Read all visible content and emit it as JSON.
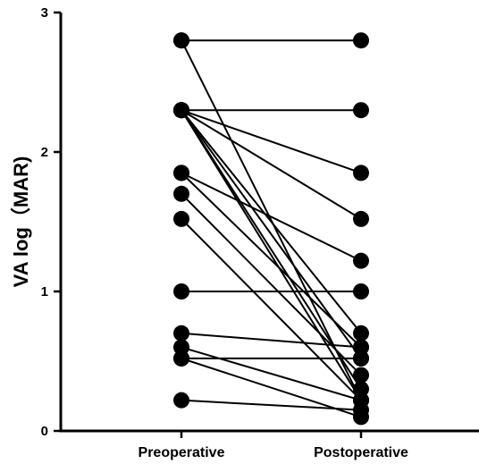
{
  "chart_data": {
    "type": "scatter",
    "subtype": "paired-before-after",
    "title": "",
    "xlabel": "",
    "ylabel": "VA log（MAR)",
    "categories": [
      "Preoperative",
      "Postoperative"
    ],
    "ylim": [
      0,
      3
    ],
    "yticks": [
      0,
      1,
      2,
      3
    ],
    "grid": false,
    "legend": "none",
    "colors": {
      "marker": "#000000",
      "line": "#000000"
    },
    "pairs": [
      [
        2.8,
        2.8
      ],
      [
        2.8,
        0.22
      ],
      [
        2.3,
        2.3
      ],
      [
        2.3,
        1.85
      ],
      [
        2.3,
        1.52
      ],
      [
        2.3,
        0.7
      ],
      [
        2.3,
        0.52
      ],
      [
        2.3,
        0.3
      ],
      [
        2.3,
        0.22
      ],
      [
        1.85,
        1.22
      ],
      [
        1.85,
        0.6
      ],
      [
        1.7,
        0.4
      ],
      [
        1.52,
        0.22
      ],
      [
        1.0,
        1.0
      ],
      [
        0.7,
        0.6
      ],
      [
        0.6,
        0.22
      ],
      [
        0.52,
        0.52
      ],
      [
        0.52,
        0.1
      ],
      [
        0.22,
        0.15
      ]
    ]
  }
}
